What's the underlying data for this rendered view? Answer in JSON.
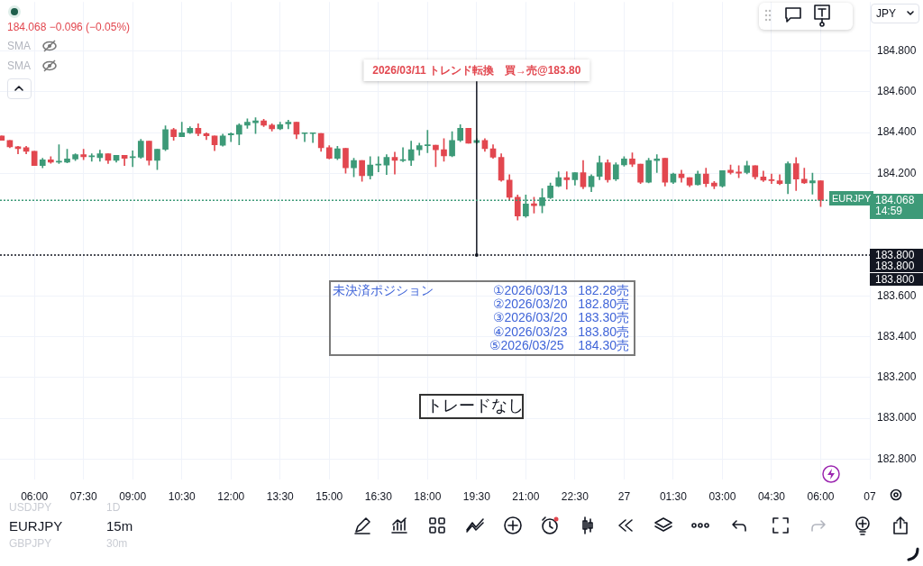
{
  "chart_data": {
    "type": "candlestick",
    "x": [
      "2026-03-26T05:00",
      "2026-03-26T05:15",
      "2026-03-26T05:30",
      "2026-03-26T05:45",
      "2026-03-26T06:00",
      "2026-03-26T06:15",
      "2026-03-26T06:30",
      "2026-03-26T06:45",
      "2026-03-26T07:00",
      "2026-03-26T07:15",
      "2026-03-26T07:30",
      "2026-03-26T07:45",
      "2026-03-26T08:00",
      "2026-03-26T08:15",
      "2026-03-26T08:30",
      "2026-03-26T08:45",
      "2026-03-26T09:00",
      "2026-03-26T09:15",
      "2026-03-26T09:30",
      "2026-03-26T09:45",
      "2026-03-26T10:00",
      "2026-03-26T10:15",
      "2026-03-26T10:30",
      "2026-03-26T10:45",
      "2026-03-26T11:00",
      "2026-03-26T11:15",
      "2026-03-26T11:30",
      "2026-03-26T11:45",
      "2026-03-26T12:00",
      "2026-03-26T12:15",
      "2026-03-26T12:30",
      "2026-03-26T12:45",
      "2026-03-26T13:00",
      "2026-03-26T13:15",
      "2026-03-26T13:30",
      "2026-03-26T13:45",
      "2026-03-26T14:00",
      "2026-03-26T14:15",
      "2026-03-26T14:30",
      "2026-03-26T14:45",
      "2026-03-26T15:00",
      "2026-03-26T15:15",
      "2026-03-26T15:30",
      "2026-03-26T15:45",
      "2026-03-26T16:00",
      "2026-03-26T16:15",
      "2026-03-26T16:30",
      "2026-03-26T16:45",
      "2026-03-26T17:00",
      "2026-03-26T17:15",
      "2026-03-26T17:30",
      "2026-03-26T17:45",
      "2026-03-26T18:00",
      "2026-03-26T18:15",
      "2026-03-26T18:30",
      "2026-03-26T18:45",
      "2026-03-26T19:00",
      "2026-03-26T19:15",
      "2026-03-26T19:30",
      "2026-03-26T19:45",
      "2026-03-26T20:00",
      "2026-03-26T20:15",
      "2026-03-26T20:30",
      "2026-03-26T20:45",
      "2026-03-26T21:00",
      "2026-03-26T21:15",
      "2026-03-26T21:30",
      "2026-03-26T21:45",
      "2026-03-26T22:00",
      "2026-03-26T22:15",
      "2026-03-26T22:30",
      "2026-03-26T22:45",
      "2026-03-26T23:00",
      "2026-03-26T23:15",
      "2026-03-26T23:30",
      "2026-03-26T23:45",
      "2026-03-27T00:00",
      "2026-03-27T00:15",
      "2026-03-27T00:30",
      "2026-03-27T00:45",
      "2026-03-27T01:00",
      "2026-03-27T01:15",
      "2026-03-27T01:30",
      "2026-03-27T01:45",
      "2026-03-27T02:00",
      "2026-03-27T02:15",
      "2026-03-27T02:30",
      "2026-03-27T02:45",
      "2026-03-27T03:00",
      "2026-03-27T03:15",
      "2026-03-27T03:30",
      "2026-03-27T03:45",
      "2026-03-27T04:00",
      "2026-03-27T04:15",
      "2026-03-27T04:30",
      "2026-03-27T04:45",
      "2026-03-27T05:00",
      "2026-03-27T05:15",
      "2026-03-27T05:30",
      "2026-03-27T05:45",
      "2026-03-27T06:00"
    ],
    "ohlc": [
      [
        184.384,
        184.384,
        184.362,
        184.362
      ],
      [
        184.362,
        184.362,
        184.326,
        184.33
      ],
      [
        184.33,
        184.333,
        184.296,
        184.321
      ],
      [
        184.326,
        184.333,
        184.296,
        184.308
      ],
      [
        184.308,
        184.308,
        184.238,
        184.238
      ],
      [
        184.238,
        184.274,
        184.227,
        184.267
      ],
      [
        184.267,
        184.282,
        184.249,
        184.255
      ],
      [
        184.255,
        184.34,
        184.248,
        184.26
      ],
      [
        184.255,
        184.318,
        184.252,
        184.271
      ],
      [
        184.271,
        184.296,
        184.263,
        184.292
      ],
      [
        184.292,
        184.318,
        184.267,
        184.282
      ],
      [
        184.282,
        184.296,
        184.26,
        184.286
      ],
      [
        184.277,
        184.314,
        184.26,
        184.296
      ],
      [
        184.296,
        184.296,
        184.248,
        184.264
      ],
      [
        184.264,
        184.289,
        184.255,
        184.289
      ],
      [
        184.289,
        184.289,
        184.238,
        184.274
      ],
      [
        184.277,
        184.311,
        184.233,
        184.282
      ],
      [
        184.279,
        184.367,
        184.274,
        184.358
      ],
      [
        184.358,
        184.358,
        184.241,
        184.264
      ],
      [
        184.264,
        184.318,
        184.219,
        184.318
      ],
      [
        184.318,
        184.433,
        184.311,
        184.414
      ],
      [
        184.414,
        184.421,
        184.362,
        184.38
      ],
      [
        184.38,
        184.451,
        184.38,
        184.399
      ],
      [
        184.399,
        184.429,
        184.395,
        184.421
      ],
      [
        184.421,
        184.443,
        184.384,
        184.395
      ],
      [
        184.395,
        184.399,
        184.365,
        184.384
      ],
      [
        184.384,
        184.384,
        184.311,
        184.34
      ],
      [
        184.338,
        184.392,
        184.333,
        184.384
      ],
      [
        184.389,
        184.399,
        184.355,
        184.395
      ],
      [
        184.392,
        184.443,
        184.34,
        184.436
      ],
      [
        184.436,
        184.468,
        184.421,
        184.451
      ],
      [
        184.448,
        184.473,
        184.395,
        184.458
      ],
      [
        184.458,
        184.465,
        184.429,
        184.436
      ],
      [
        184.436,
        184.443,
        184.407,
        184.418
      ],
      [
        184.418,
        184.451,
        184.414,
        184.439
      ],
      [
        184.443,
        184.461,
        184.418,
        184.451
      ],
      [
        184.451,
        184.451,
        184.37,
        184.392
      ],
      [
        184.395,
        184.399,
        184.355,
        184.399
      ],
      [
        184.395,
        184.399,
        184.351,
        184.399
      ],
      [
        184.396,
        184.396,
        184.308,
        184.326
      ],
      [
        184.326,
        184.336,
        184.271,
        184.274
      ],
      [
        184.274,
        184.333,
        184.267,
        184.321
      ],
      [
        184.323,
        184.323,
        184.201,
        184.227
      ],
      [
        184.227,
        184.274,
        184.183,
        184.263
      ],
      [
        184.263,
        184.263,
        184.161,
        184.189
      ],
      [
        184.189,
        184.282,
        184.172,
        184.241
      ],
      [
        184.241,
        184.282,
        184.208,
        184.245
      ],
      [
        184.241,
        184.292,
        184.194,
        184.279
      ],
      [
        184.279,
        184.304,
        184.197,
        184.264
      ],
      [
        184.263,
        184.326,
        184.257,
        184.267
      ],
      [
        184.264,
        184.358,
        184.238,
        184.316
      ],
      [
        184.316,
        184.348,
        184.289,
        184.336
      ],
      [
        184.336,
        184.411,
        184.301,
        184.34
      ],
      [
        184.338,
        184.338,
        184.233,
        184.316
      ],
      [
        184.316,
        184.37,
        184.26,
        184.286
      ],
      [
        184.286,
        184.404,
        184.282,
        184.362
      ],
      [
        184.362,
        184.439,
        184.355,
        184.421
      ],
      [
        184.421,
        184.421,
        184.348,
        184.348
      ],
      [
        184.351,
        184.37,
        184.348,
        184.362
      ],
      [
        184.362,
        184.37,
        184.308,
        184.321
      ],
      [
        184.321,
        184.34,
        184.274,
        184.279
      ],
      [
        184.279,
        184.296,
        184.161,
        184.167
      ],
      [
        184.167,
        184.194,
        184.069,
        184.083
      ],
      [
        184.083,
        184.094,
        183.971,
        183.991
      ],
      [
        183.991,
        184.094,
        183.984,
        184.05
      ],
      [
        184.051,
        184.083,
        184.006,
        184.042
      ],
      [
        184.042,
        184.125,
        184.007,
        184.081
      ],
      [
        184.081,
        184.153,
        184.076,
        184.138
      ],
      [
        184.138,
        184.208,
        184.135,
        184.179
      ],
      [
        184.179,
        184.208,
        184.123,
        184.169
      ],
      [
        184.169,
        184.204,
        184.142,
        184.204
      ],
      [
        184.204,
        184.263,
        184.125,
        184.135
      ],
      [
        184.135,
        184.194,
        184.11,
        184.186
      ],
      [
        184.186,
        184.285,
        184.169,
        184.252
      ],
      [
        184.252,
        184.267,
        184.157,
        184.169
      ],
      [
        184.172,
        184.252,
        184.164,
        184.242
      ],
      [
        184.242,
        184.282,
        184.235,
        184.271
      ],
      [
        184.271,
        184.301,
        184.233,
        184.245
      ],
      [
        184.245,
        184.245,
        184.15,
        184.157
      ],
      [
        184.157,
        184.274,
        184.154,
        184.263
      ],
      [
        184.263,
        184.292,
        184.204,
        184.271
      ],
      [
        184.274,
        184.274,
        184.138,
        184.157
      ],
      [
        184.157,
        184.201,
        184.15,
        184.197
      ],
      [
        184.197,
        184.216,
        184.157,
        184.179
      ],
      [
        184.179,
        184.179,
        184.135,
        184.142
      ],
      [
        184.145,
        184.211,
        184.142,
        184.197
      ],
      [
        184.197,
        184.226,
        184.135,
        184.15
      ],
      [
        184.153,
        184.16,
        184.125,
        184.138
      ],
      [
        184.138,
        184.213,
        184.132,
        184.213
      ],
      [
        184.216,
        184.241,
        184.197,
        184.204
      ],
      [
        184.207,
        184.238,
        184.179,
        184.201
      ],
      [
        184.204,
        184.26,
        184.198,
        184.238
      ],
      [
        184.238,
        184.238,
        184.172,
        184.183
      ],
      [
        184.183,
        184.211,
        184.16,
        184.167
      ],
      [
        184.169,
        184.197,
        184.15,
        184.164
      ],
      [
        184.164,
        184.194,
        184.145,
        184.15
      ],
      [
        184.15,
        184.257,
        184.101,
        184.248
      ],
      [
        184.248,
        184.277,
        184.116,
        184.172
      ],
      [
        184.172,
        184.226,
        184.15,
        184.154
      ],
      [
        184.154,
        184.201,
        184.098,
        184.164
      ],
      [
        184.164,
        184.164,
        184.037,
        184.068
      ]
    ],
    "colors": [
      "#e2474f",
      "#e2474f",
      "#e2474f",
      "#e2474f",
      "#e2474f",
      "#3d9a78",
      "#e2474f",
      "#3d9a78",
      "#3d9a78",
      "#3d9a78",
      "#e2474f",
      "#3d9a78",
      "#3d9a78",
      "#e2474f",
      "#3d9a78",
      "#e2474f",
      "#3d9a78",
      "#3d9a78",
      "#e2474f",
      "#3d9a78",
      "#3d9a78",
      "#e2474f",
      "#3d9a78",
      "#3d9a78",
      "#e2474f",
      "#e2474f",
      "#e2474f",
      "#3d9a78",
      "#3d9a78",
      "#3d9a78",
      "#3d9a78",
      "#3d9a78",
      "#e2474f",
      "#e2474f",
      "#3d9a78",
      "#3d9a78",
      "#e2474f",
      "#3d9a78",
      "#3d9a78",
      "#e2474f",
      "#e2474f",
      "#3d9a78",
      "#e2474f",
      "#3d9a78",
      "#e2474f",
      "#3d9a78",
      "#3d9a78",
      "#3d9a78",
      "#e2474f",
      "#3d9a78",
      "#3d9a78",
      "#3d9a78",
      "#3d9a78",
      "#e2474f",
      "#e2474f",
      "#3d9a78",
      "#3d9a78",
      "#e2474f",
      "#3d9a78",
      "#e2474f",
      "#e2474f",
      "#e2474f",
      "#e2474f",
      "#e2474f",
      "#3d9a78",
      "#e2474f",
      "#3d9a78",
      "#3d9a78",
      "#3d9a78",
      "#e2474f",
      "#3d9a78",
      "#e2474f",
      "#3d9a78",
      "#3d9a78",
      "#e2474f",
      "#3d9a78",
      "#3d9a78",
      "#e2474f",
      "#e2474f",
      "#3d9a78",
      "#3d9a78",
      "#e2474f",
      "#3d9a78",
      "#e2474f",
      "#e2474f",
      "#3d9a78",
      "#e2474f",
      "#e2474f",
      "#3d9a78",
      "#e2474f",
      "#e2474f",
      "#3d9a78",
      "#e2474f",
      "#e2474f",
      "#e2474f",
      "#e2474f",
      "#3d9a78",
      "#e2474f",
      "#e2474f",
      "#3d9a78",
      "#e2474f"
    ],
    "xlim": [
      "2026-03-26T04:57",
      "2026-03-27T07:30"
    ],
    "xticks": [
      {
        "value": "2026-03-26T06:00",
        "label": "06:00"
      },
      {
        "value": "2026-03-26T07:30",
        "label": "07:30"
      },
      {
        "value": "2026-03-26T09:00",
        "label": "09:00"
      },
      {
        "value": "2026-03-26T10:30",
        "label": "10:30"
      },
      {
        "value": "2026-03-26T12:00",
        "label": "12:00"
      },
      {
        "value": "2026-03-26T13:30",
        "label": "13:30"
      },
      {
        "value": "2026-03-26T15:00",
        "label": "15:00"
      },
      {
        "value": "2026-03-26T16:30",
        "label": "16:30"
      },
      {
        "value": "2026-03-26T18:00",
        "label": "18:00"
      },
      {
        "value": "2026-03-26T19:30",
        "label": "19:30"
      },
      {
        "value": "2026-03-26T21:00",
        "label": "21:00"
      },
      {
        "value": "2026-03-26T22:30",
        "label": "22:30"
      },
      {
        "value": "2026-03-27T00:00",
        "label": "27"
      },
      {
        "value": "2026-03-27T01:30",
        "label": "01:30"
      },
      {
        "value": "2026-03-27T03:00",
        "label": "03:00"
      },
      {
        "value": "2026-03-27T04:30",
        "label": "04:30"
      },
      {
        "value": "2026-03-27T06:00",
        "label": "06:00"
      },
      {
        "value": "2026-03-27T07:30",
        "label": "07"
      }
    ],
    "ylim": [
      182.7,
      185.04
    ],
    "yticks": [
      {
        "value": 182.8,
        "label": "182.800"
      },
      {
        "value": 183,
        "label": "183.000"
      },
      {
        "value": 183.2,
        "label": "183.200"
      },
      {
        "value": 183.4,
        "label": "183.400"
      },
      {
        "value": 183.6,
        "label": "183.600"
      },
      {
        "value": 184.2,
        "label": "184.200"
      },
      {
        "value": 184.4,
        "label": "184.400"
      },
      {
        "value": 184.6,
        "label": "184.600"
      },
      {
        "value": 184.8,
        "label": "184.800"
      }
    ],
    "grid": true,
    "ref_lines": [
      {
        "axis": "x",
        "value": "2026-03-26T19:30",
        "label": "2026/03/11 トレンド転換　買→売@183.80",
        "color": "#131722",
        "line_style": "solid"
      },
      {
        "axis": "y",
        "value": 183.8,
        "label": "183.800",
        "color": "#131722",
        "line_style": "dotted"
      },
      {
        "axis": "y",
        "value": 184.068,
        "label": "184.068",
        "color": "#3d9a78",
        "line_style": "dotted"
      }
    ],
    "annotations": [
      "184.068 −0.096 (−0.05%)",
      "SMA",
      "SMA",
      "未決済ポジション",
      "①2026/03/13   182.28売",
      "②2026/03/20   182.80売",
      "③2026/03/20   183.30売",
      "④2026/03/23   183.80売",
      "⑤2026/03/25    184.30売",
      "トレードなし",
      "JPY",
      "EURJPY",
      "14:59",
      "USDJPY",
      "1D",
      "EURJPY",
      "15m",
      "GBPJPY",
      "30m",
      "183.800",
      "183.800"
    ]
  }
}
